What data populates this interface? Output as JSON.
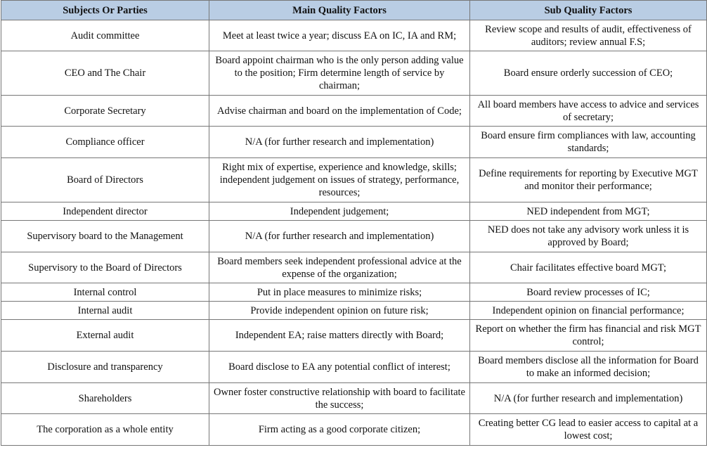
{
  "table": {
    "header": [
      "Subjects Or Parties",
      "Main Quality Factors",
      "Sub Quality Factors"
    ],
    "rows": [
      [
        "Audit committee",
        "Meet at least twice a year; discuss EA on IC, IA and RM;",
        "Review scope and results of audit, effectiveness of auditors; review annual F.S;"
      ],
      [
        "CEO and The Chair",
        "Board appoint chairman who is the only person adding value to the position; Firm determine length of service by chairman;",
        "Board ensure orderly succession of CEO;"
      ],
      [
        "Corporate Secretary",
        "Advise chairman and board on the implementation of Code;",
        "All board members have access to advice and services of secretary;"
      ],
      [
        "Compliance officer",
        "N/A (for further research and implementation)",
        "Board ensure firm compliances with law, accounting standards;"
      ],
      [
        "Board of Directors",
        "Right mix of expertise, experience and knowledge, skills; independent judgement on issues of strategy, performance, resources;",
        "Define requirements for reporting by Executive MGT and monitor their performance;"
      ],
      [
        "Independent director",
        "Independent judgement;",
        "NED independent from MGT;"
      ],
      [
        "Supervisory board to the Management",
        "N/A (for further research and implementation)",
        "NED does not take any advisory work unless it is approved by Board;"
      ],
      [
        "Supervisory to the Board of Directors",
        "Board members seek independent professional advice at the expense of the organization;",
        "Chair facilitates effective board MGT;"
      ],
      [
        "Internal control",
        "Put in place measures to minimize risks;",
        "Board review processes of IC;"
      ],
      [
        "Internal audit",
        "Provide independent opinion on future risk;",
        "Independent opinion on financial performance;"
      ],
      [
        "External audit",
        "Independent EA; raise matters directly with Board;",
        "Report on whether the firm has financial and risk MGT control;"
      ],
      [
        "Disclosure and transparency",
        "Board disclose to EA any potential conflict of interest;",
        "Board members disclose all the information for Board to make an informed decision;"
      ],
      [
        "Shareholders",
        "Owner foster constructive relationship with board to facilitate the success;",
        "N/A (for further research and implementation)"
      ],
      [
        "The corporation as a whole entity",
        "Firm acting as a good corporate citizen;",
        "Creating better CG lead to easier access to capital at a lowest cost;"
      ]
    ]
  }
}
